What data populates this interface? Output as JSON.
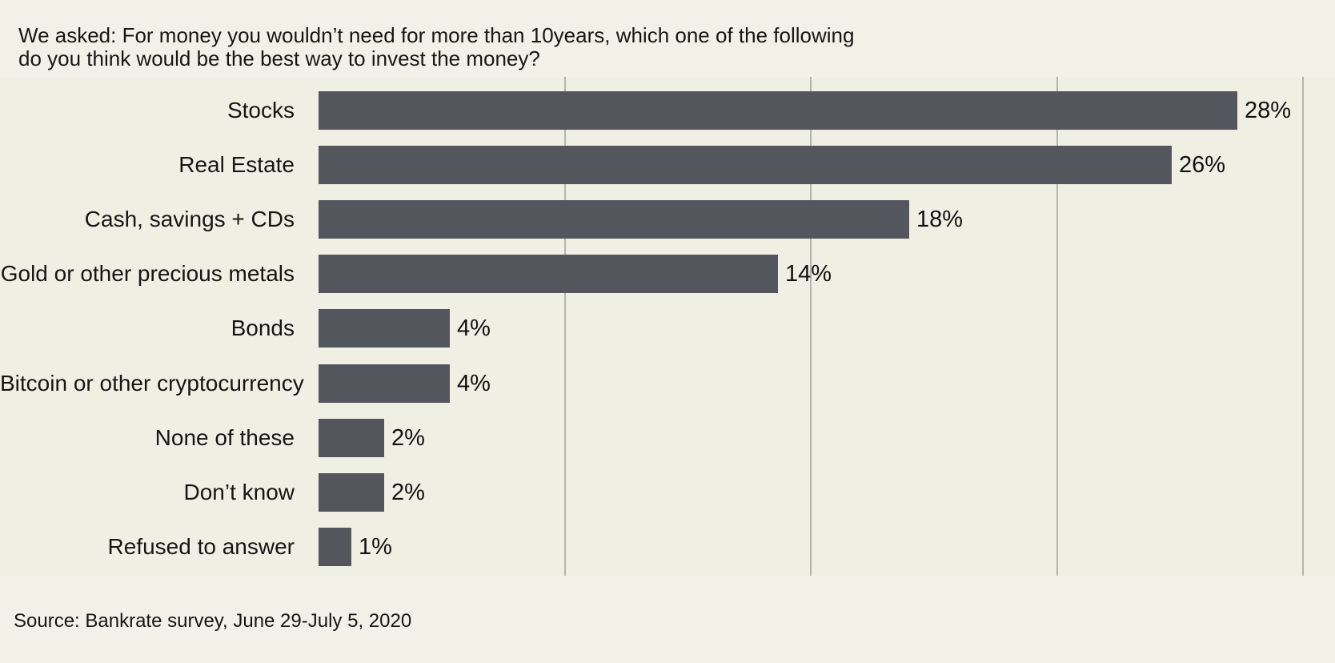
{
  "title": {
    "line1": "We asked: For money you wouldn’t need for more than 10years, which one of the following",
    "line2": "do you think would be the best way to invest the money?"
  },
  "source": "Source: Bankrate survey, June 29-July 5, 2020",
  "colors": {
    "page_background": "#f1f1e8",
    "plot_background": "#eff0e3",
    "bar": "#53565c",
    "gridline": "#b3b6b0",
    "text": "#161616"
  },
  "chart_data": {
    "type": "bar",
    "orientation": "horizontal",
    "title": "We asked: For money you wouldn’t need for more than 10years, which one of the following do you think would be the best way to invest the money?",
    "categories": [
      "Stocks",
      "Real Estate",
      "Cash, savings + CDs",
      "Gold or other precious metals",
      "Bonds",
      "Bitcoin or other cryptocurrency",
      "None of these",
      "Don’t know",
      "Refused to answer"
    ],
    "values": [
      28,
      26,
      18,
      14,
      4,
      4,
      2,
      2,
      1
    ],
    "value_labels": [
      "28%",
      "26%",
      "18%",
      "14%",
      "4%",
      "4%",
      "2%",
      "2%",
      "1%"
    ],
    "unit": "%",
    "xlim": [
      0,
      31
    ],
    "gridlines_at": [
      7.5,
      15,
      22.5,
      30
    ],
    "grid": true,
    "value_axis_tick_labels_visible": false,
    "legend": false,
    "source": "Source: Bankrate survey, June 29-July 5, 2020"
  }
}
